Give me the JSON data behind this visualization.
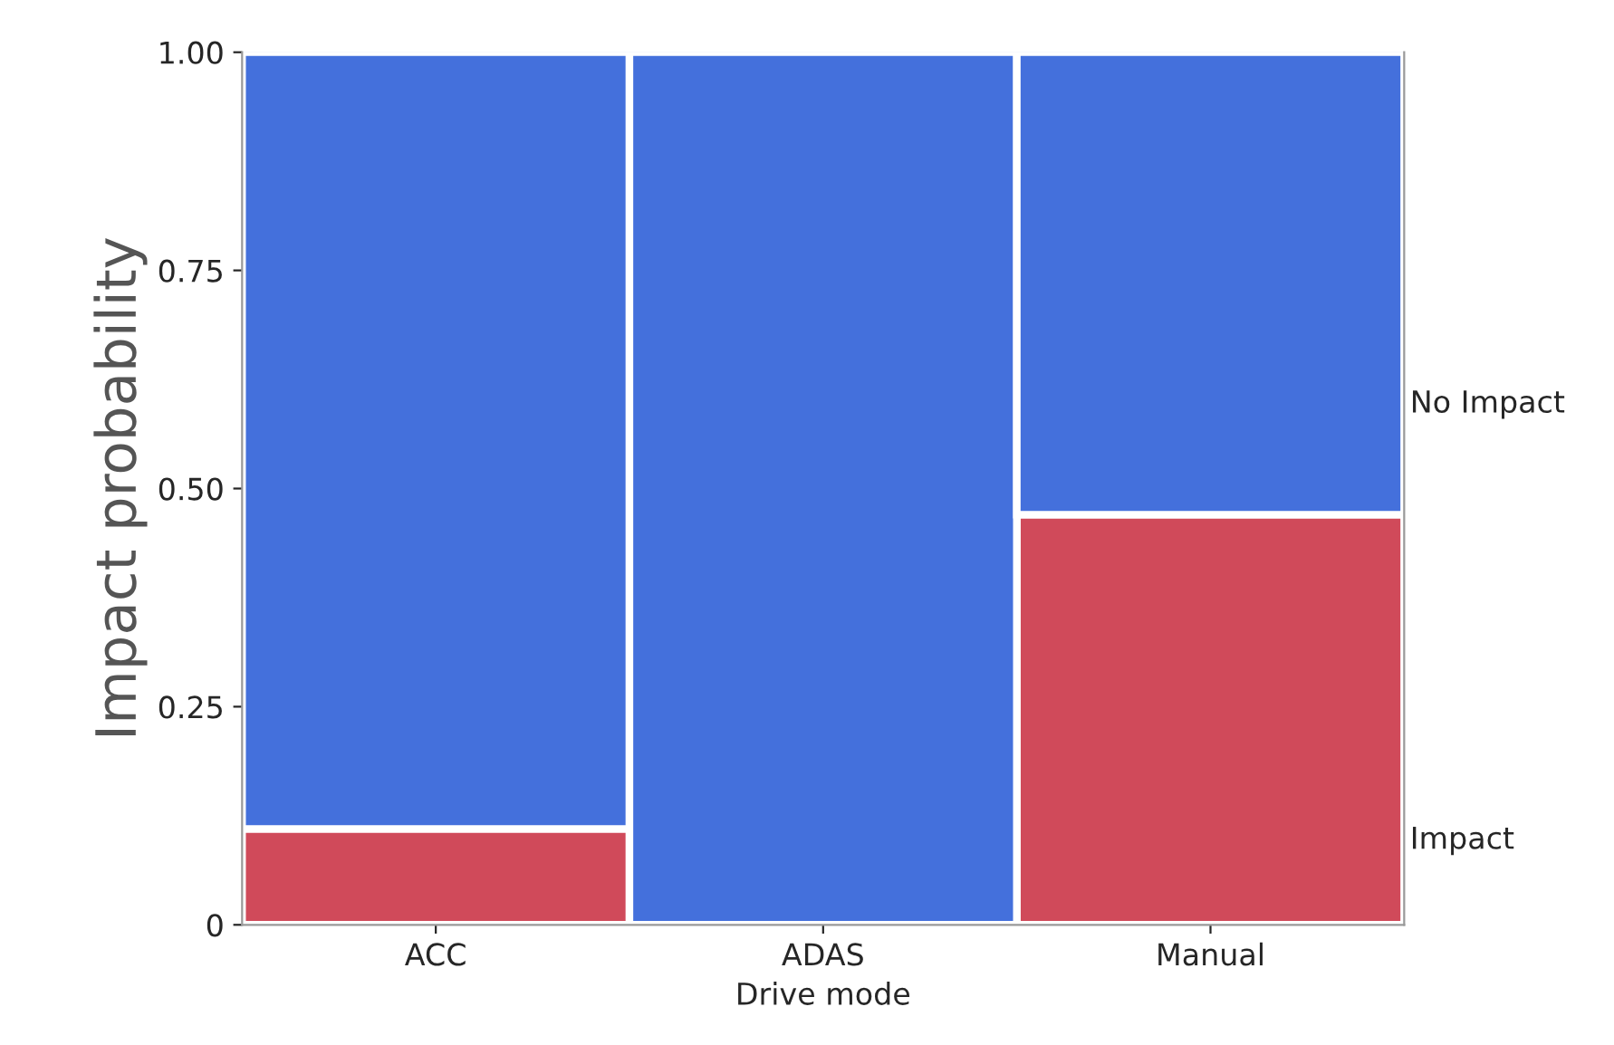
{
  "chart_data": {
    "type": "bar",
    "stacked": true,
    "xlabel": "Drive mode",
    "ylabel": "Impact probability",
    "categories": [
      "ACC",
      "ADAS",
      "Manual"
    ],
    "series": [
      {
        "name": "Impact",
        "color": "#d04a5a",
        "values": [
          0.11,
          0,
          0.47
        ]
      },
      {
        "name": "No Impact",
        "color": "#4470dc",
        "values": [
          0.89,
          1,
          0.53
        ]
      }
    ],
    "ylim": [
      0,
      1
    ],
    "yticks": [
      {
        "value": 0,
        "label": "0"
      },
      {
        "value": 0.25,
        "label": "0.25"
      },
      {
        "value": 0.5,
        "label": "0.50"
      },
      {
        "value": 0.75,
        "label": "0.75"
      },
      {
        "value": 1,
        "label": "1.00"
      }
    ],
    "grid": false,
    "legend": "right"
  }
}
